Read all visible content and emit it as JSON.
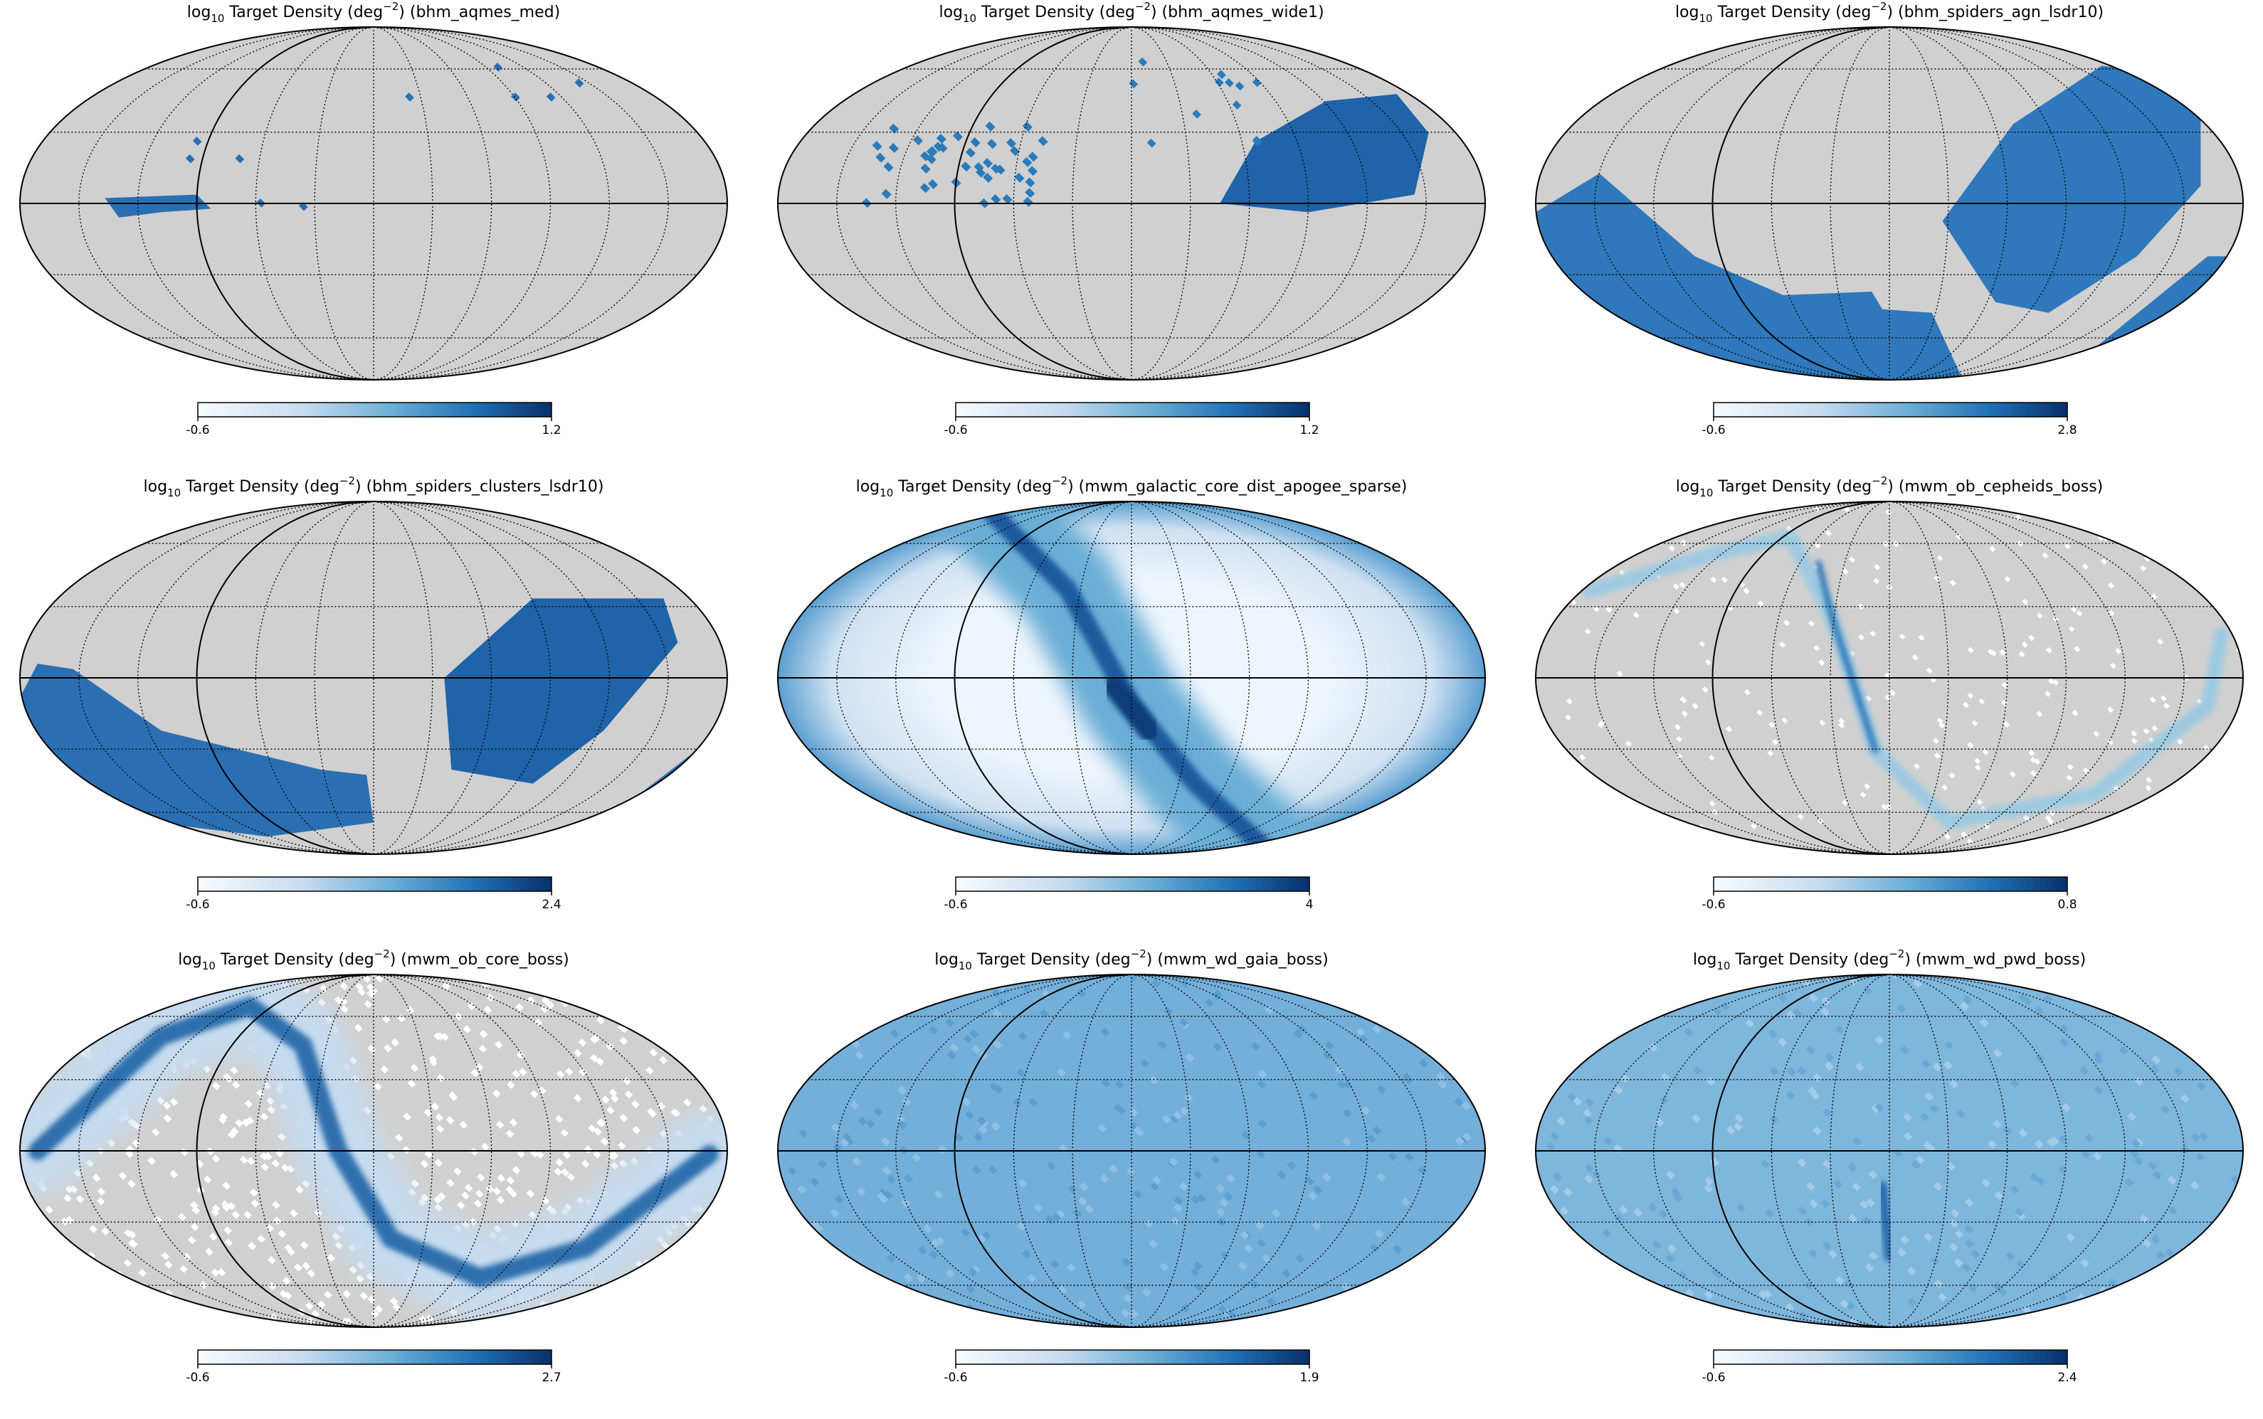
{
  "chart_data": [
    {
      "type": "healpix-map",
      "title": [
        "log",
        "10",
        " Target Density (deg",
        "−2",
        ") (bhm_aqmes_med)"
      ],
      "clim": [
        -0.6,
        1.2
      ],
      "cticks": [
        -0.6,
        1.2
      ]
    },
    {
      "type": "healpix-map",
      "title": [
        "log",
        "10",
        " Target Density (deg",
        "−2",
        ") (bhm_aqmes_wide1)"
      ],
      "clim": [
        -0.6,
        1.2
      ],
      "cticks": [
        -0.6,
        1.2
      ]
    },
    {
      "type": "healpix-map",
      "title": [
        "log",
        "10",
        " Target Density (deg",
        "−2",
        ") (bhm_spiders_agn_lsdr10)"
      ],
      "clim": [
        -0.6,
        2.8
      ],
      "cticks": [
        -0.6,
        2.8
      ]
    },
    {
      "type": "healpix-map",
      "title": [
        "log",
        "10",
        " Target Density (deg",
        "−2",
        ") (bhm_spiders_clusters_lsdr10)"
      ],
      "clim": [
        -0.6,
        2.4
      ],
      "cticks": [
        -0.6,
        2.4
      ]
    },
    {
      "type": "healpix-map",
      "title": [
        "log",
        "10",
        " Target Density (deg",
        "−2",
        ") (mwm_galactic_core_dist_apogee_sparse)"
      ],
      "clim": [
        -0.6,
        4
      ],
      "cticks": [
        -0.6,
        4
      ]
    },
    {
      "type": "healpix-map",
      "title": [
        "log",
        "10",
        " Target Density (deg",
        "−2",
        ") (mwm_ob_cepheids_boss)"
      ],
      "clim": [
        -0.6,
        0.8
      ],
      "cticks": [
        -0.6,
        0.8
      ]
    },
    {
      "type": "healpix-map",
      "title": [
        "log",
        "10",
        " Target Density (deg",
        "−2",
        ") (mwm_ob_core_boss)"
      ],
      "clim": [
        -0.6,
        2.7
      ],
      "cticks": [
        -0.6,
        2.7
      ]
    },
    {
      "type": "healpix-map",
      "title": [
        "log",
        "10",
        " Target Density (deg",
        "−2",
        ") (mwm_wd_gaia_boss)"
      ],
      "clim": [
        -0.6,
        1.9
      ],
      "cticks": [
        -0.6,
        1.9
      ]
    },
    {
      "type": "healpix-map",
      "title": [
        "log",
        "10",
        " Target Density (deg",
        "−2",
        ") (mwm_wd_pwd_boss)"
      ],
      "clim": [
        -0.6,
        2.4
      ],
      "cticks": [
        -0.6,
        2.4
      ]
    }
  ]
}
